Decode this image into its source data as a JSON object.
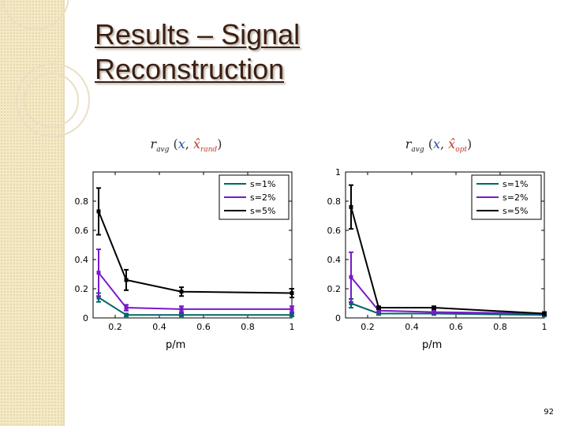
{
  "slide": {
    "title_line1": "Results – Signal",
    "title_line2": "Reconstruction",
    "page_number": "92"
  },
  "colors": {
    "title": "#3c1f12",
    "series": [
      "#006666",
      "#7a18c9",
      "#000000"
    ]
  },
  "chart_data": [
    {
      "type": "line",
      "title_parts": {
        "r": "r",
        "sub": "avg",
        "x": "x",
        "xhat": "x̂",
        "xhat_sub": "rand"
      },
      "xlabel": "p/m",
      "ylabel": "",
      "xlim": [
        0.1,
        1.0
      ],
      "ylim": [
        0,
        1.0
      ],
      "xticks": [
        0.2,
        0.4,
        0.6,
        0.8,
        1.0
      ],
      "xtick_labels": [
        "0.2",
        "0.4",
        "0.6",
        "0.8",
        "1"
      ],
      "yticks": [
        0,
        0.2,
        0.4,
        0.6,
        0.8
      ],
      "ytick_labels": [
        "0",
        "0.2",
        "0.4",
        "0.6",
        "0.8"
      ],
      "legend_position": "top-right",
      "x": [
        0.125,
        0.25,
        0.5,
        1.0
      ],
      "series": [
        {
          "name": "s=1%",
          "values": [
            0.14,
            0.02,
            0.02,
            0.02
          ],
          "err": [
            0.03,
            0.01,
            0.01,
            0.01
          ]
        },
        {
          "name": "s=2%",
          "values": [
            0.31,
            0.07,
            0.06,
            0.06
          ],
          "err": [
            0.16,
            0.02,
            0.02,
            0.02
          ]
        },
        {
          "name": "s=5%",
          "values": [
            0.73,
            0.26,
            0.18,
            0.17
          ],
          "err": [
            0.16,
            0.07,
            0.03,
            0.03
          ]
        }
      ]
    },
    {
      "type": "line",
      "title_parts": {
        "r": "r",
        "sub": "avg",
        "x": "x",
        "xhat": "x̂",
        "xhat_sub": "opt"
      },
      "xlabel": "p/m",
      "ylabel": "",
      "xlim": [
        0.1,
        1.0
      ],
      "ylim": [
        0,
        1.0
      ],
      "xticks": [
        0.2,
        0.4,
        0.6,
        0.8,
        1.0
      ],
      "xtick_labels": [
        "0.2",
        "0.4",
        "0.6",
        "0.8",
        "1"
      ],
      "yticks": [
        0,
        0.2,
        0.4,
        0.6,
        0.8,
        1.0
      ],
      "ytick_labels": [
        "0",
        "0.2",
        "0.4",
        "0.6",
        "0.8",
        "1"
      ],
      "legend_position": "top-right",
      "x": [
        0.125,
        0.25,
        0.5,
        1.0
      ],
      "series": [
        {
          "name": "s=1%",
          "values": [
            0.1,
            0.03,
            0.03,
            0.02
          ],
          "err": [
            0.03,
            0.01,
            0.01,
            0.01
          ]
        },
        {
          "name": "s=2%",
          "values": [
            0.28,
            0.05,
            0.04,
            0.03
          ],
          "err": [
            0.17,
            0.01,
            0.01,
            0.01
          ]
        },
        {
          "name": "s=5%",
          "values": [
            0.76,
            0.07,
            0.07,
            0.03
          ],
          "err": [
            0.15,
            0.01,
            0.01,
            0.01
          ]
        }
      ]
    }
  ]
}
